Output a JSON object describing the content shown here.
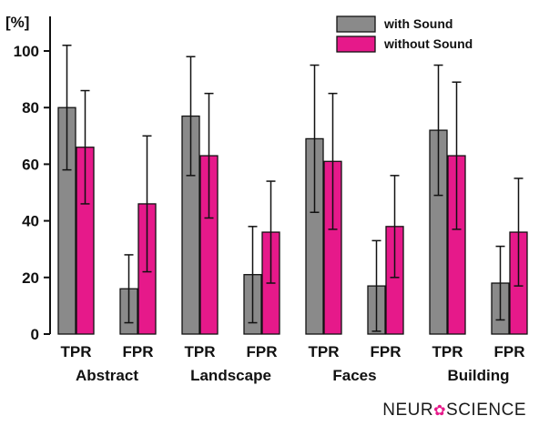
{
  "chart_data": {
    "type": "bar",
    "ylabel": "[%]",
    "ylim": [
      0,
      110
    ],
    "yticks": [
      0,
      20,
      40,
      60,
      80,
      100
    ],
    "groups": [
      "Abstract",
      "Landscape",
      "Faces",
      "Building"
    ],
    "categories": [
      "TPR",
      "FPR",
      "TPR",
      "FPR",
      "TPR",
      "FPR",
      "TPR",
      "FPR"
    ],
    "series": [
      {
        "name": "with Sound",
        "color": "#8a8a8a",
        "values": [
          80,
          16,
          77,
          21,
          69,
          17,
          72,
          18
        ],
        "error": [
          22,
          12,
          21,
          17,
          26,
          16,
          23,
          13
        ]
      },
      {
        "name": "without Sound",
        "color": "#e6198a",
        "values": [
          66,
          46,
          63,
          36,
          61,
          38,
          63,
          36
        ],
        "error": [
          20,
          24,
          22,
          18,
          24,
          18,
          26,
          19
        ]
      }
    ],
    "legend_position": "top-right",
    "grid": false
  },
  "branding": {
    "logo_left": "NEUR",
    "logo_right": "SCIENCE"
  }
}
